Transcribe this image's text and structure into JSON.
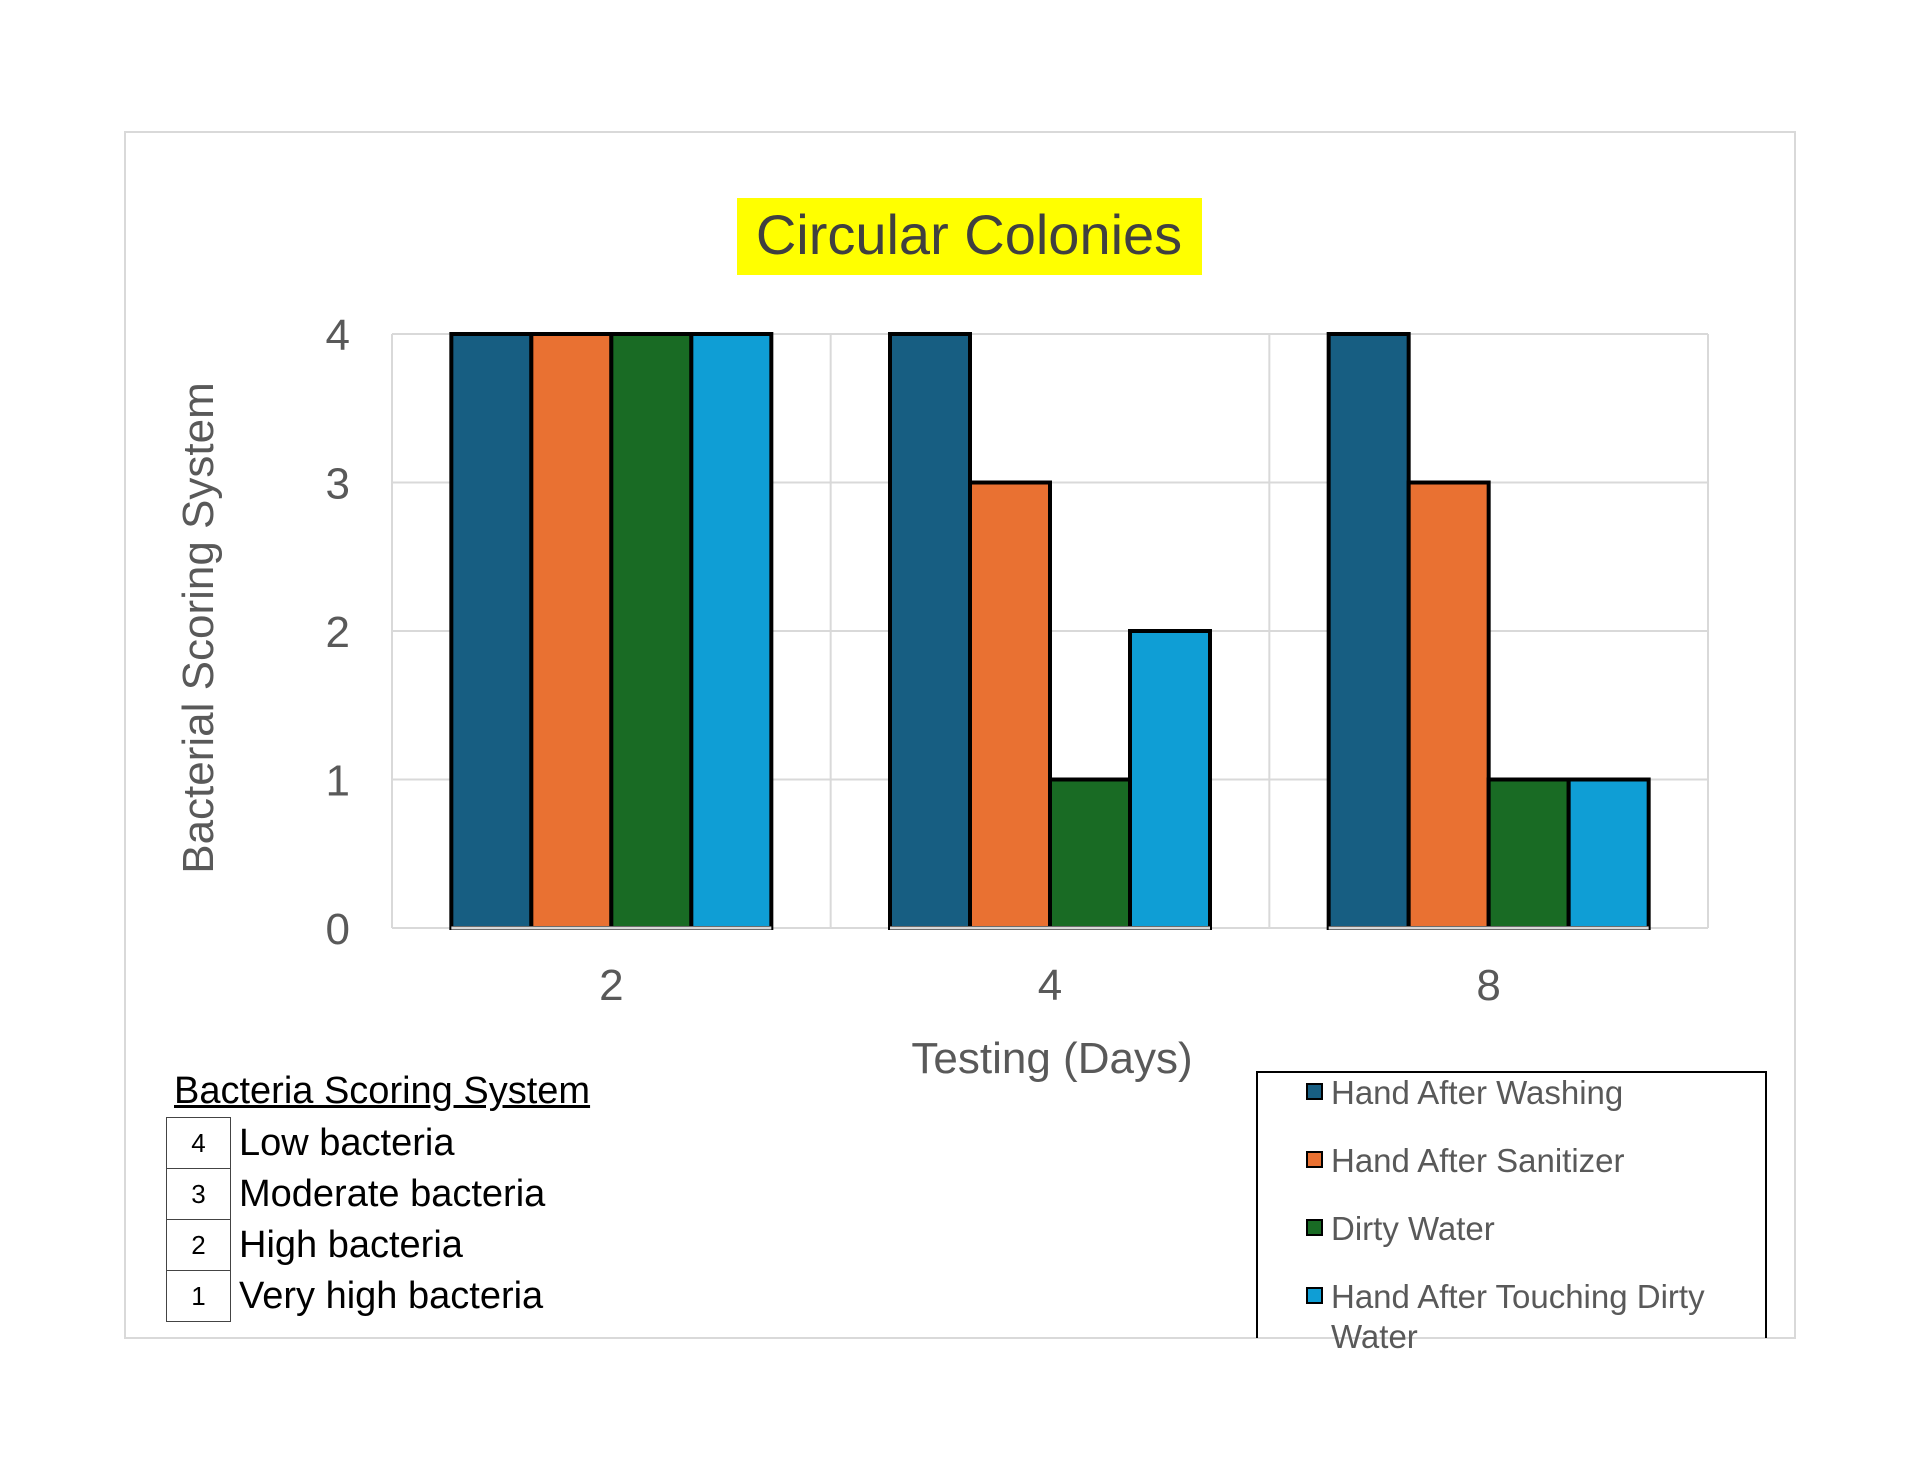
{
  "chart_data": {
    "type": "bar",
    "title": "Circular Colonies",
    "title_highlight_color": "#ffff00",
    "xlabel": "Testing (Days)",
    "ylabel": "Bacterial Scoring System",
    "categories": [
      "2",
      "4",
      "8"
    ],
    "yticks": [
      "0",
      "1",
      "2",
      "3",
      "4"
    ],
    "ylim": [
      0,
      4
    ],
    "grid": true,
    "legend_position": "bottom-right",
    "series": [
      {
        "name": "Hand After Washing",
        "color": "#175e82",
        "values": [
          4,
          4,
          4
        ]
      },
      {
        "name": "Hand After Sanitizer",
        "color": "#e97132",
        "values": [
          4,
          3,
          3
        ]
      },
      {
        "name": "Dirty Water",
        "color": "#196b24",
        "values": [
          4,
          1,
          1
        ]
      },
      {
        "name": "Hand After Touching Dirty Water",
        "color": "#0f9ed5",
        "values": [
          4,
          2,
          1
        ]
      }
    ]
  },
  "scoring": {
    "title": "Bacteria Scoring System",
    "rows": [
      {
        "score": "4",
        "label": "Low bacteria"
      },
      {
        "score": "3",
        "label": "Moderate bacteria"
      },
      {
        "score": "2",
        "label": "High bacteria"
      },
      {
        "score": "1",
        "label": "Very high bacteria"
      }
    ]
  }
}
